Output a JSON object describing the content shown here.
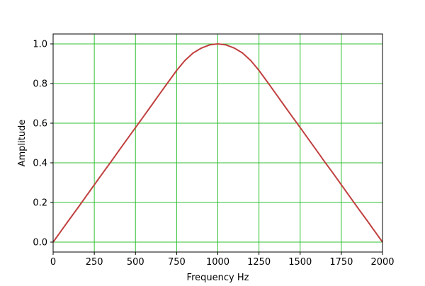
{
  "chart_data": {
    "type": "line",
    "title": "",
    "xlabel": "Frequency Hz",
    "ylabel": "Amplitude",
    "xlim": [
      0,
      2000
    ],
    "ylim": [
      -0.05,
      1.05
    ],
    "xticks": [
      0,
      250,
      500,
      750,
      1000,
      1250,
      1500,
      1750,
      2000
    ],
    "xtick_labels": [
      "0",
      "250",
      "500",
      "750",
      "1000",
      "1250",
      "1500",
      "1750",
      "2000"
    ],
    "yticks": [
      0.0,
      0.2,
      0.4,
      0.6,
      0.8,
      1.0
    ],
    "ytick_labels": [
      "0.0",
      "0.2",
      "0.4",
      "0.6",
      "0.8",
      "1.0"
    ],
    "grid": true,
    "colors": {
      "line": "#c0403f",
      "grid": "#33c033"
    },
    "series": [
      {
        "x": [
          0,
          50,
          100,
          150,
          200,
          250,
          300,
          350,
          400,
          450,
          500,
          550,
          600,
          650,
          700,
          750,
          800,
          850,
          900,
          950,
          1000,
          1050,
          1100,
          1150,
          1200,
          1250,
          1300,
          1350,
          1400,
          1450,
          1500,
          1550,
          1600,
          1650,
          1700,
          1750,
          1800,
          1850,
          1900,
          1950,
          2000
        ],
        "y": [
          0,
          0.058,
          0.116,
          0.173,
          0.231,
          0.289,
          0.347,
          0.404,
          0.462,
          0.52,
          0.578,
          0.635,
          0.693,
          0.751,
          0.809,
          0.866,
          0.916,
          0.954,
          0.979,
          0.995,
          1.0,
          0.995,
          0.979,
          0.954,
          0.916,
          0.866,
          0.809,
          0.751,
          0.693,
          0.635,
          0.578,
          0.52,
          0.462,
          0.404,
          0.347,
          0.289,
          0.231,
          0.173,
          0.116,
          0.058,
          0
        ]
      }
    ]
  }
}
